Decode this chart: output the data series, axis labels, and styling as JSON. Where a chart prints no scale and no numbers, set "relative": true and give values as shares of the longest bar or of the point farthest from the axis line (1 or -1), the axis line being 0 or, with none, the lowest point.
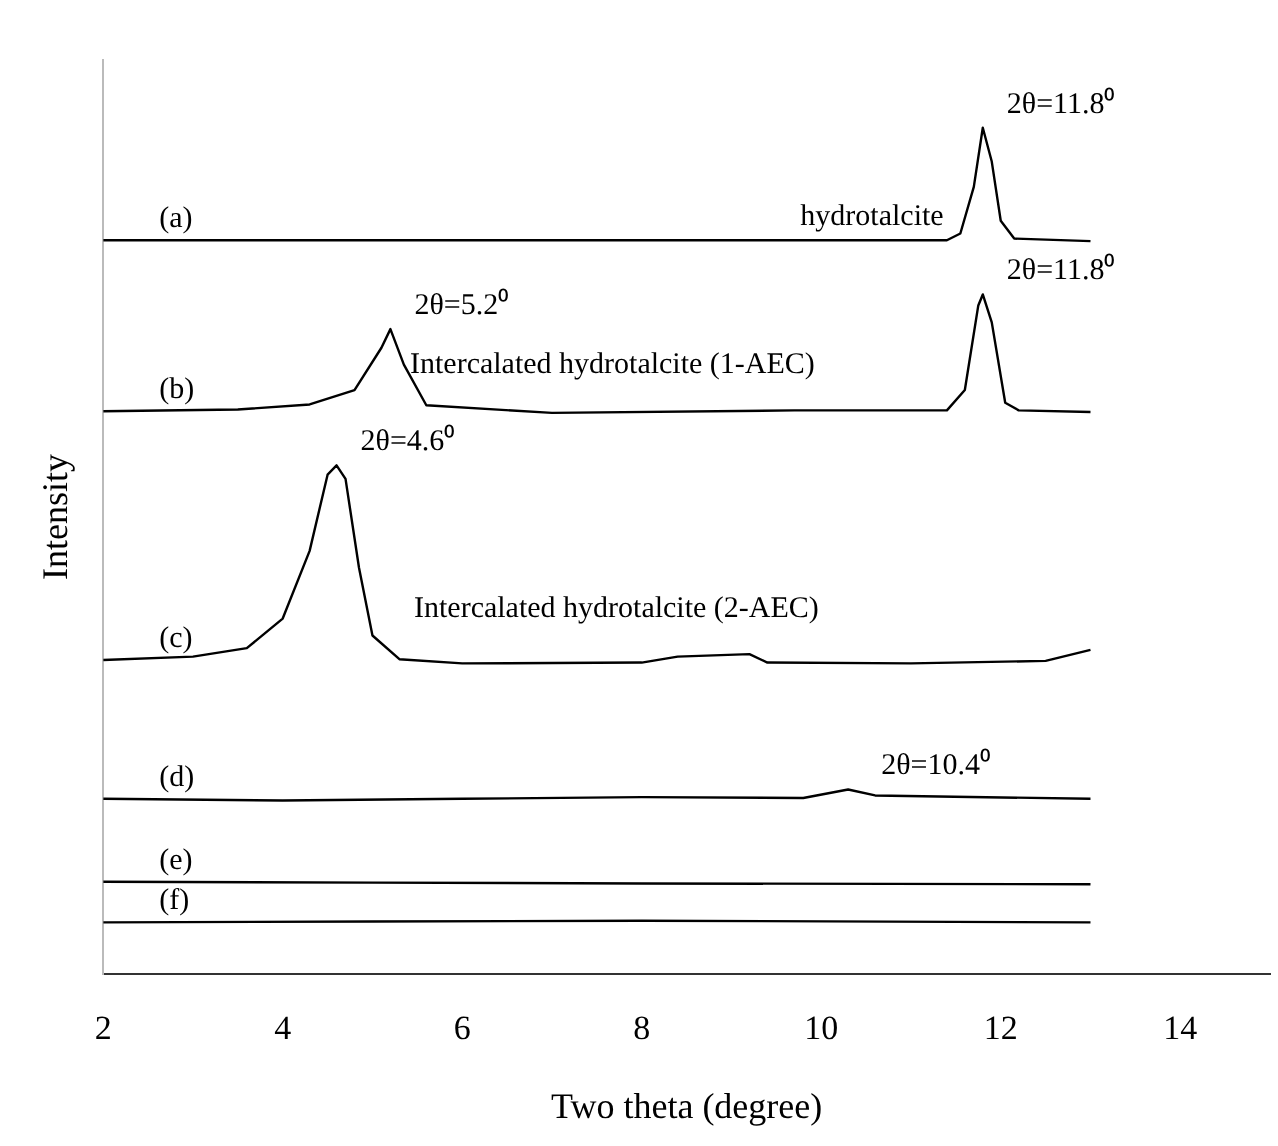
{
  "chart_data": {
    "type": "line",
    "relative": true,
    "xlabel": "Two theta (degree)",
    "ylabel": "Intensity",
    "xlim": [
      2,
      15
    ],
    "xticks": [
      2,
      4,
      6,
      8,
      10,
      12,
      14
    ],
    "grid": false,
    "legend": false,
    "marker": "none",
    "line_style": "solid",
    "series": [
      {
        "name": "(a)",
        "color": "#000000",
        "x": [
          2,
          11.4,
          11.55,
          11.7,
          11.8,
          11.9,
          12.0,
          12.15,
          13
        ],
        "values": [
          0.867,
          0.867,
          0.875,
          0.93,
          1.0,
          0.96,
          0.89,
          0.869,
          0.866
        ]
      },
      {
        "name": "(b)",
        "color": "#000000",
        "x": [
          2,
          3.5,
          4.3,
          4.8,
          5.1,
          5.2,
          5.35,
          5.6,
          7,
          9.7,
          11.4,
          11.6,
          11.75,
          11.8,
          11.9,
          12.05,
          12.2,
          13
        ],
        "values": [
          0.665,
          0.667,
          0.673,
          0.69,
          0.74,
          0.762,
          0.72,
          0.672,
          0.663,
          0.666,
          0.666,
          0.69,
          0.79,
          0.803,
          0.77,
          0.675,
          0.666,
          0.664
        ]
      },
      {
        "name": "(c)",
        "color": "#000000",
        "x": [
          2,
          3,
          3.6,
          4.0,
          4.3,
          4.5,
          4.6,
          4.7,
          4.85,
          5.0,
          5.3,
          6,
          8,
          8.4,
          9.2,
          9.4,
          11,
          12.5,
          13
        ],
        "values": [
          0.371,
          0.375,
          0.385,
          0.42,
          0.5,
          0.59,
          0.601,
          0.585,
          0.48,
          0.4,
          0.372,
          0.367,
          0.368,
          0.375,
          0.378,
          0.368,
          0.367,
          0.37,
          0.383
        ]
      },
      {
        "name": "(d)",
        "color": "#000000",
        "x": [
          2,
          4,
          6,
          8,
          9.8,
          10.3,
          10.6,
          13
        ],
        "values": [
          0.207,
          0.205,
          0.207,
          0.209,
          0.208,
          0.218,
          0.211,
          0.207
        ]
      },
      {
        "name": "(e)",
        "color": "#000000",
        "x": [
          2,
          5,
          8,
          13
        ],
        "values": [
          0.109,
          0.108,
          0.107,
          0.106
        ]
      },
      {
        "name": "(f)",
        "color": "#000000",
        "x": [
          2,
          5,
          8,
          13
        ],
        "values": [
          0.061,
          0.062,
          0.063,
          0.061
        ]
      }
    ],
    "annotations": [
      {
        "text": "2θ=11.8⁰",
        "x": 11.8,
        "y": 1.0
      },
      {
        "text": "hydrotalcite",
        "x": 9.5,
        "y": 0.867
      },
      {
        "text": "2θ=5.2⁰",
        "x": 5.2,
        "y": 0.762
      },
      "Intercalated hydrotalcite (1-AEC)",
      {
        "text": "2θ=11.8⁰",
        "x": 11.8,
        "y": 0.803
      },
      {
        "text": "2θ=4.6⁰",
        "x": 4.6,
        "y": 0.601
      },
      "Intercalated hydrotalcite (2-AEC)",
      {
        "text": "2θ=10.4⁰",
        "x": 10.4,
        "y": 0.218
      }
    ]
  }
}
